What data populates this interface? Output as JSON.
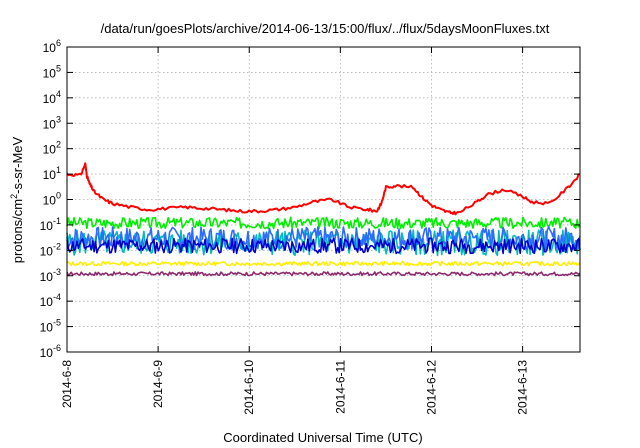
{
  "chart_data": {
    "type": "line",
    "title": "/data/run/goesPlots/archive/2014-06-13/15:00/flux/../flux/5daysMoonFluxes.txt",
    "xlabel": "Coordinated Universal Time (UTC)",
    "ylabel": {
      "prefix": "protons/cm",
      "sup": "2",
      "suffix": "-s-sr-MeV"
    },
    "yscale": "log",
    "ylim_exponents": [
      -6,
      6
    ],
    "y_tick_exponents": [
      -6,
      -5,
      -4,
      -3,
      -2,
      -1,
      0,
      1,
      2,
      3,
      4,
      5,
      6
    ],
    "y_tick_base": "10",
    "x_ticks": [
      {
        "day": 0,
        "label": "2014-6-8"
      },
      {
        "day": 1,
        "label": "2014-6-9"
      },
      {
        "day": 2,
        "label": "2014-6-10"
      },
      {
        "day": 3,
        "label": "2014-6-11"
      },
      {
        "day": 4,
        "label": "2014-6-12"
      },
      {
        "day": 5,
        "label": "2014-6-13"
      }
    ],
    "xlim_days": [
      0,
      5.63
    ],
    "grid": true,
    "legend": "none",
    "series": [
      {
        "color": "#ff0000",
        "x": [
          0,
          0.15,
          0.2,
          0.22,
          0.25,
          0.3,
          0.4,
          0.5,
          0.7,
          0.9,
          1.1,
          1.3,
          1.5,
          1.7,
          1.9,
          2.1,
          2.3,
          2.5,
          2.7,
          2.9,
          3.1,
          3.3,
          3.4,
          3.45,
          3.5,
          3.6,
          3.8,
          3.9,
          4.0,
          4.1,
          4.2,
          4.3,
          4.5,
          4.6,
          4.8,
          5.0,
          5.1,
          5.3,
          5.5,
          5.63
        ],
        "y": [
          10,
          9,
          25,
          8,
          4,
          2,
          1,
          0.7,
          0.5,
          0.4,
          0.45,
          0.5,
          0.45,
          0.4,
          0.35,
          0.35,
          0.4,
          0.5,
          0.8,
          1.0,
          0.5,
          0.4,
          0.35,
          0.7,
          3,
          3.5,
          3,
          1.2,
          0.6,
          0.4,
          0.3,
          0.3,
          0.8,
          1.5,
          2.5,
          1.3,
          0.8,
          0.7,
          3,
          10
        ]
      },
      {
        "color": "#00ee00",
        "base": 0.12,
        "spread": 0.22,
        "seed": 3
      },
      {
        "color": "#00bbbb",
        "base": 0.02,
        "spread": 0.5,
        "seed": 5
      },
      {
        "color": "#2a6cff",
        "base": 0.03,
        "spread": 0.45,
        "seed": 7
      },
      {
        "color": "#0000cc",
        "base": 0.015,
        "spread": 0.3,
        "seed": 11
      },
      {
        "color": "#ffee00",
        "base": 0.003,
        "spread": 0.08,
        "seed": 13
      },
      {
        "color": "#8b2a6e",
        "base": 0.0012,
        "spread": 0.07,
        "seed": 17
      }
    ]
  }
}
